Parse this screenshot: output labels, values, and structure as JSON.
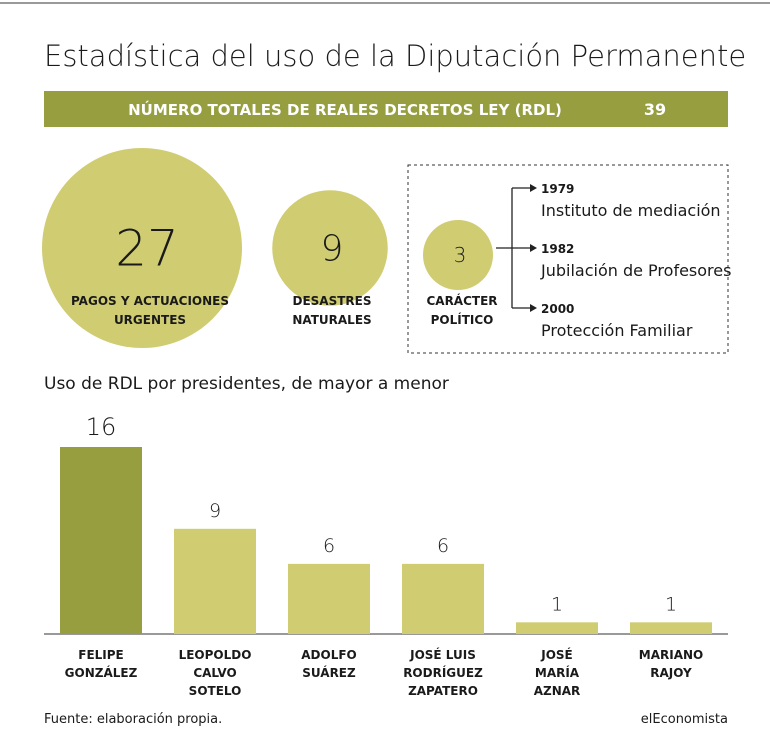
{
  "title": "Estadística del uso de la Diputación Permanente",
  "banner": {
    "label": "NÚMERO TOTALES DE REALES DECRETOS LEY (RDL)",
    "value": 39
  },
  "bubbles": [
    {
      "value": 27,
      "label_lines": [
        "PAGOS Y ACTUACIONES",
        "URGENTES"
      ]
    },
    {
      "value": 9,
      "label_lines": [
        "DESASTRES",
        "NATURALES"
      ]
    },
    {
      "value": 3,
      "label_lines": [
        "CARÁCTER",
        "POLÍTICO"
      ]
    }
  ],
  "bubble_color": "#d0cc72",
  "timeline": [
    {
      "year": "1979",
      "text": "Instituto de mediación"
    },
    {
      "year": "1982",
      "text": "Jubilación de Profesores"
    },
    {
      "year": "2000",
      "text": "Protección Familiar"
    }
  ],
  "chart_data": {
    "type": "bar",
    "title": "Uso de RDL por presidentes, de mayor a menor",
    "categories": [
      [
        "FELIPE",
        "GONZÁLEZ"
      ],
      [
        "LEOPOLDO",
        "CALVO",
        "SOTELO"
      ],
      [
        "ADOLFO",
        "SUÁREZ"
      ],
      [
        "JOSÉ LUIS",
        "RODRÍGUEZ",
        "ZAPATERO"
      ],
      [
        "JOSÉ",
        "MARÍA",
        "AZNAR"
      ],
      [
        "MARIANO",
        "RAJOY"
      ]
    ],
    "values": [
      16,
      9,
      6,
      6,
      1,
      1
    ],
    "colors": [
      "#969e3f",
      "#d0cc72",
      "#d0cc72",
      "#d0cc72",
      "#d0cc72",
      "#d0cc72"
    ],
    "ylim": [
      0,
      16
    ]
  },
  "footer": {
    "source": "Fuente: elaboración propia.",
    "brand": "elEconomista"
  }
}
